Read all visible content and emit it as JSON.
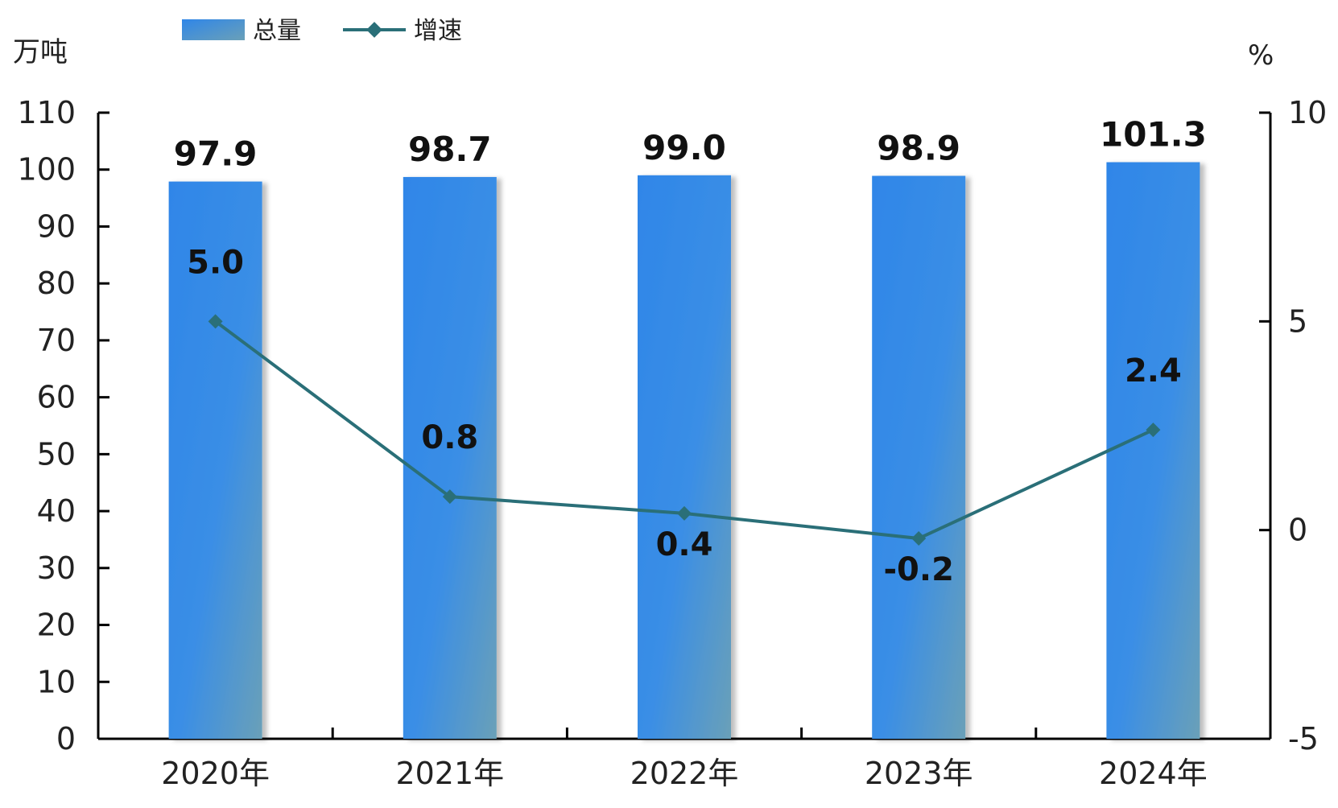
{
  "chart_data": {
    "type": "bar",
    "categories": [
      "2020年",
      "2021年",
      "2022年",
      "2023年",
      "2024年"
    ],
    "series": [
      {
        "name": "总量",
        "type": "bar",
        "axis": "left",
        "values": [
          97.9,
          98.7,
          99.0,
          98.9,
          101.3
        ],
        "value_labels": [
          "97.9",
          "98.7",
          "99.0",
          "98.9",
          "101.3"
        ],
        "color": "#2f86e8"
      },
      {
        "name": "增速",
        "type": "line",
        "axis": "right",
        "values": [
          5.0,
          0.8,
          0.4,
          -0.2,
          2.4
        ],
        "value_labels": [
          "5.0",
          "0.8",
          "0.4",
          "-0.2",
          "2.4"
        ],
        "color": "#2a6f78"
      }
    ],
    "y_left": {
      "unit": "万吨",
      "ylim": [
        0,
        110
      ],
      "ticks": [
        0,
        10,
        20,
        30,
        40,
        50,
        60,
        70,
        80,
        90,
        100,
        110
      ],
      "tick_labels": [
        "0",
        "10",
        "20",
        "30",
        "40",
        "50",
        "60",
        "70",
        "80",
        "90",
        "100",
        "110"
      ]
    },
    "y_right": {
      "unit": "%",
      "ylim": [
        -5,
        10
      ],
      "ticks": [
        -5,
        0,
        5,
        10
      ],
      "tick_labels": [
        "-5",
        "0",
        "5",
        "10"
      ]
    },
    "legend": {
      "placement": "top-left",
      "items": [
        "总量",
        "增速"
      ]
    },
    "grid": false
  }
}
